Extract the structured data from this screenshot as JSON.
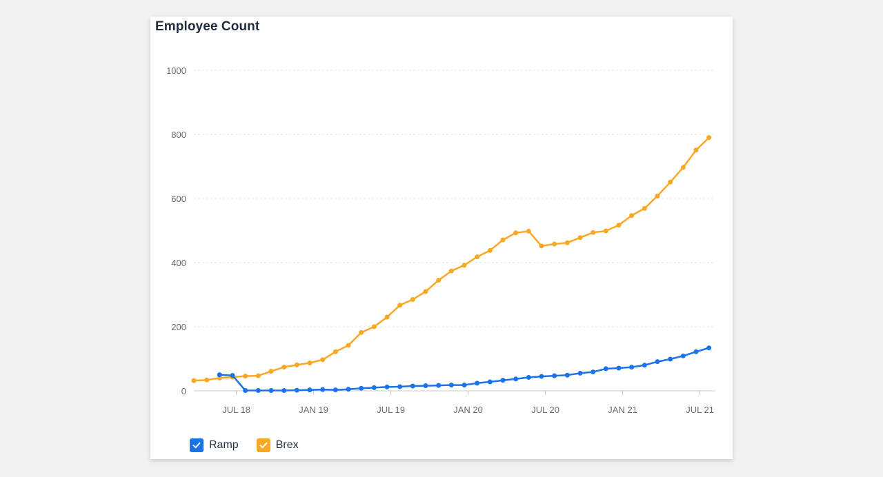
{
  "card": {
    "title": "Employee Count"
  },
  "chart_data": {
    "type": "line",
    "title": "Employee Count",
    "xlabel": "",
    "ylabel": "",
    "ylim": [
      0,
      1000
    ],
    "y_ticks": [
      0,
      200,
      400,
      600,
      800,
      1000
    ],
    "x_tick_labels": [
      "JUL 18",
      "JAN 19",
      "JUL 19",
      "JAN 20",
      "JUL 20",
      "JAN 21",
      "JUL 21"
    ],
    "x_tick_months": [
      6,
      12,
      18,
      24,
      30,
      36,
      42
    ],
    "xlim_months": [
      2.7,
      43.2
    ],
    "grid": true,
    "legend_position": "bottom-left",
    "series": [
      {
        "name": "Ramp",
        "color": "#1a73e8",
        "x_months": [
          4.7,
          5.7,
          6.7,
          7.7,
          8.7,
          9.7,
          10.7,
          11.7,
          12.7,
          13.7,
          14.7,
          15.7,
          16.7,
          17.7,
          18.7,
          19.7,
          20.7,
          21.7,
          22.7,
          23.7,
          24.7,
          25.7,
          26.7,
          27.7,
          28.7,
          29.7,
          30.7,
          31.7,
          32.7,
          33.7,
          34.7,
          35.7,
          36.7,
          37.7,
          38.7,
          39.7,
          40.7,
          41.7,
          42.7
        ],
        "values": [
          50,
          48,
          1,
          1,
          1,
          1,
          2,
          3,
          4,
          3,
          5,
          8,
          10,
          12,
          13,
          15,
          16,
          17,
          18,
          18,
          24,
          28,
          33,
          37,
          42,
          45,
          47,
          49,
          55,
          59,
          69,
          71,
          74,
          80,
          91,
          99,
          109,
          122,
          134
        ]
      },
      {
        "name": "Brex",
        "color": "#f9a825",
        "x_months": [
          2.7,
          3.7,
          4.7,
          5.7,
          6.7,
          7.7,
          8.7,
          9.7,
          10.7,
          11.7,
          12.7,
          13.7,
          14.7,
          15.7,
          16.7,
          17.7,
          18.7,
          19.7,
          20.7,
          21.7,
          22.7,
          23.7,
          24.7,
          25.7,
          26.7,
          27.7,
          28.7,
          29.7,
          30.7,
          31.7,
          32.7,
          33.7,
          34.7,
          35.7,
          36.7,
          37.7,
          38.7,
          39.7,
          40.7,
          41.7,
          42.7
        ],
        "values": [
          32,
          34,
          40,
          43,
          46,
          47,
          61,
          74,
          81,
          87,
          97,
          122,
          142,
          182,
          200,
          230,
          267,
          285,
          310,
          345,
          374,
          392,
          418,
          438,
          471,
          493,
          498,
          452,
          458,
          462,
          478,
          494,
          499,
          517,
          547,
          569,
          608,
          651,
          697,
          751,
          790
        ]
      }
    ]
  },
  "legend": {
    "ramp": {
      "label": "Ramp",
      "color": "#1a73e8"
    },
    "brex": {
      "label": "Brex",
      "color": "#f9a825"
    }
  },
  "icons": {
    "checkbox": "check-icon"
  }
}
